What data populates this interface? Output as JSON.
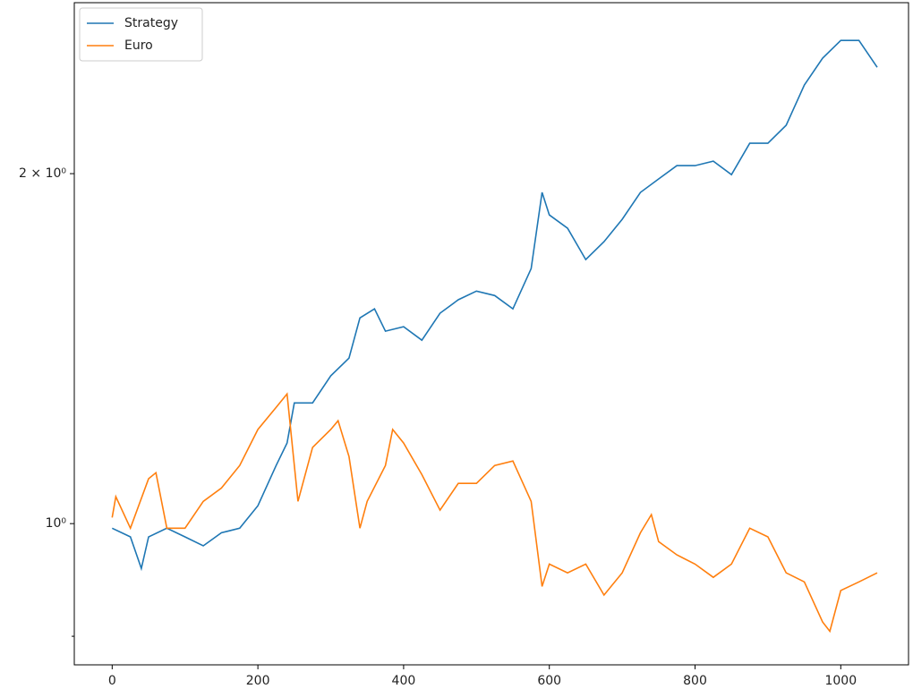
{
  "chart_data": {
    "type": "line",
    "series": [
      {
        "name": "Strategy",
        "color": "#1f77b4",
        "x": [
          0,
          25,
          40,
          50,
          75,
          100,
          125,
          150,
          175,
          200,
          225,
          240,
          250,
          275,
          300,
          325,
          340,
          360,
          375,
          400,
          425,
          450,
          475,
          500,
          525,
          550,
          575,
          590,
          600,
          625,
          650,
          675,
          700,
          725,
          750,
          775,
          800,
          825,
          850,
          875,
          900,
          925,
          950,
          975,
          1000,
          1025,
          1050
        ],
        "values": [
          0.991,
          0.974,
          0.915,
          0.974,
          0.991,
          0.974,
          0.957,
          0.982,
          0.991,
          1.036,
          1.122,
          1.173,
          1.27,
          1.27,
          1.34,
          1.388,
          1.503,
          1.53,
          1.464,
          1.477,
          1.438,
          1.517,
          1.558,
          1.585,
          1.571,
          1.53,
          1.657,
          1.927,
          1.843,
          1.795,
          1.687,
          1.748,
          1.827,
          1.927,
          1.979,
          2.032,
          2.032,
          2.05,
          1.996,
          2.124,
          2.124,
          2.201,
          2.384,
          2.514,
          2.604,
          2.604,
          2.469
        ]
      },
      {
        "name": "Euro",
        "color": "#ff7f0e",
        "x": [
          0,
          5,
          25,
          50,
          60,
          75,
          100,
          125,
          150,
          175,
          200,
          225,
          240,
          255,
          275,
          300,
          310,
          325,
          340,
          350,
          375,
          385,
          400,
          425,
          450,
          475,
          500,
          525,
          550,
          575,
          590,
          600,
          625,
          650,
          675,
          700,
          725,
          740,
          750,
          775,
          800,
          825,
          850,
          875,
          900,
          925,
          950,
          975,
          985,
          1000,
          1025,
          1050
        ],
        "values": [
          1.012,
          1.055,
          0.991,
          1.093,
          1.106,
          0.991,
          0.991,
          1.045,
          1.073,
          1.122,
          1.205,
          1.259,
          1.293,
          1.045,
          1.163,
          1.205,
          1.226,
          1.142,
          0.991,
          1.045,
          1.122,
          1.205,
          1.173,
          1.102,
          1.027,
          1.083,
          1.083,
          1.122,
          1.132,
          1.045,
          0.883,
          0.923,
          0.907,
          0.923,
          0.868,
          0.907,
          0.982,
          1.018,
          0.965,
          0.94,
          0.923,
          0.899,
          0.923,
          0.991,
          0.974,
          0.907,
          0.891,
          0.823,
          0.808,
          0.876,
          0.891,
          0.907
        ]
      }
    ],
    "xlim": [
      -52,
      1093
    ],
    "xticks": [
      0,
      200,
      400,
      600,
      800,
      1000
    ],
    "ylim": [
      0.756,
      2.806
    ],
    "yscale": "log",
    "yticks": [
      {
        "value": 1,
        "label": "10⁰"
      },
      {
        "value": 2,
        "label": "2 × 10⁰"
      }
    ],
    "yminor_ticks": [
      0.8
    ],
    "legend": "upper left"
  }
}
